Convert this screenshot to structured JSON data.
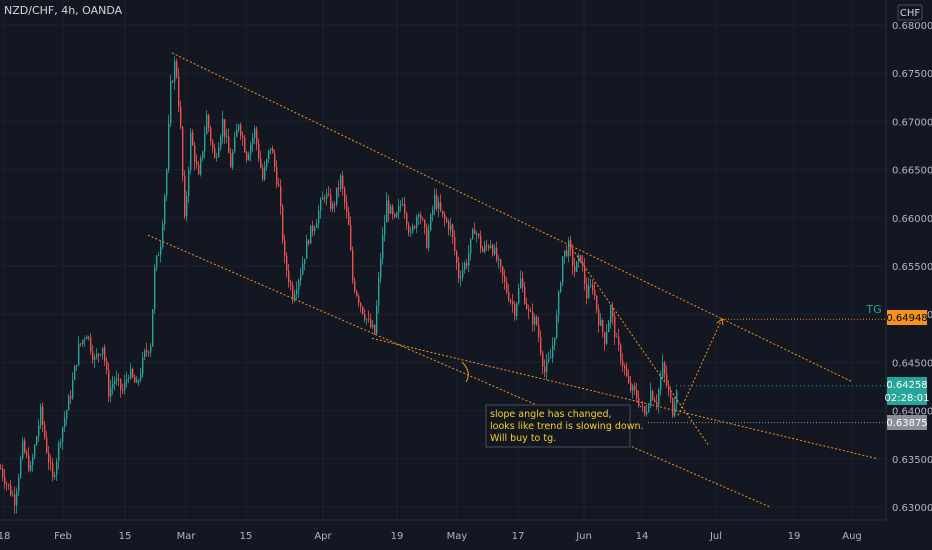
{
  "header": {
    "symbol_line": "NZD/CHF, 4h, OANDA"
  },
  "currency": "CHF",
  "markers": {
    "tg_text": "TG",
    "tg_price": "0.64948",
    "last_price": "0.64258",
    "countdown": "02:28:01",
    "level_price": "0.63875"
  },
  "annotation": [
    "slope angle has changed,",
    "looks like trend is slowing down.",
    "Will buy to tg."
  ],
  "chart_data": {
    "type": "candlestick",
    "title": "NZD/CHF, 4h, OANDA",
    "ylim": [
      0.6295,
      0.6805
    ],
    "y_ticks": [
      "0.68000",
      "0.67500",
      "0.67000",
      "0.66500",
      "0.66000",
      "0.65500",
      "0.65000",
      "0.64500",
      "0.64000",
      "0.63500",
      "0.63000"
    ],
    "x_ticks": [
      "18",
      "Feb",
      "15",
      "Mar",
      "15",
      "Apr",
      "19",
      "May",
      "17",
      "Jun",
      "14",
      "Jul",
      "19",
      "Aug"
    ],
    "colors": {
      "up": "#26a69a",
      "down": "#ef5350",
      "trendline": "#f7931a",
      "tg": "#f7931a",
      "last": "#26a69a",
      "level": "#8a8e99"
    },
    "price_path": [
      [
        0,
        0.634
      ],
      [
        8,
        0.632
      ],
      [
        14,
        0.6308
      ],
      [
        22,
        0.6362
      ],
      [
        30,
        0.6338
      ],
      [
        40,
        0.6398
      ],
      [
        46,
        0.636
      ],
      [
        52,
        0.6328
      ],
      [
        60,
        0.6375
      ],
      [
        70,
        0.6418
      ],
      [
        78,
        0.6465
      ],
      [
        86,
        0.6482
      ],
      [
        94,
        0.6452
      ],
      [
        102,
        0.6468
      ],
      [
        108,
        0.642
      ],
      [
        114,
        0.6432
      ],
      [
        122,
        0.642
      ],
      [
        128,
        0.644
      ],
      [
        136,
        0.6425
      ],
      [
        144,
        0.6458
      ],
      [
        150,
        0.647
      ],
      [
        154,
        0.6545
      ],
      [
        160,
        0.6575
      ],
      [
        166,
        0.665
      ],
      [
        170,
        0.6735
      ],
      [
        175,
        0.6765
      ],
      [
        180,
        0.669
      ],
      [
        184,
        0.6595
      ],
      [
        190,
        0.6685
      ],
      [
        198,
        0.664
      ],
      [
        206,
        0.6705
      ],
      [
        214,
        0.666
      ],
      [
        222,
        0.67
      ],
      [
        230,
        0.6655
      ],
      [
        238,
        0.67
      ],
      [
        246,
        0.6665
      ],
      [
        254,
        0.669
      ],
      [
        262,
        0.664
      ],
      [
        270,
        0.6675
      ],
      [
        278,
        0.663
      ],
      [
        284,
        0.6555
      ],
      [
        292,
        0.652
      ],
      [
        300,
        0.6545
      ],
      [
        308,
        0.658
      ],
      [
        316,
        0.66
      ],
      [
        324,
        0.6625
      ],
      [
        332,
        0.661
      ],
      [
        340,
        0.664
      ],
      [
        348,
        0.659
      ],
      [
        352,
        0.6535
      ],
      [
        360,
        0.651
      ],
      [
        368,
        0.649
      ],
      [
        374,
        0.648
      ],
      [
        380,
        0.656
      ],
      [
        386,
        0.6615
      ],
      [
        394,
        0.6595
      ],
      [
        402,
        0.662
      ],
      [
        410,
        0.658
      ],
      [
        418,
        0.661
      ],
      [
        426,
        0.6575
      ],
      [
        434,
        0.662
      ],
      [
        442,
        0.66
      ],
      [
        450,
        0.659
      ],
      [
        458,
        0.654
      ],
      [
        466,
        0.6555
      ],
      [
        474,
        0.659
      ],
      [
        482,
        0.6565
      ],
      [
        490,
        0.6575
      ],
      [
        498,
        0.655
      ],
      [
        506,
        0.6525
      ],
      [
        514,
        0.6505
      ],
      [
        520,
        0.6535
      ],
      [
        528,
        0.65
      ],
      [
        536,
        0.649
      ],
      [
        544,
        0.644
      ],
      [
        550,
        0.6455
      ],
      [
        556,
        0.6495
      ],
      [
        562,
        0.656
      ],
      [
        568,
        0.657
      ],
      [
        574,
        0.6545
      ],
      [
        580,
        0.656
      ],
      [
        586,
        0.652
      ],
      [
        592,
        0.653
      ],
      [
        598,
        0.6495
      ],
      [
        604,
        0.6475
      ],
      [
        610,
        0.6505
      ],
      [
        616,
        0.647
      ],
      [
        622,
        0.645
      ],
      [
        628,
        0.6425
      ],
      [
        636,
        0.6415
      ],
      [
        644,
        0.6395
      ],
      [
        650,
        0.642
      ],
      [
        656,
        0.641
      ],
      [
        662,
        0.6445
      ],
      [
        668,
        0.6418
      ],
      [
        672,
        0.64
      ],
      [
        676,
        0.6426
      ]
    ],
    "trendlines": [
      {
        "from": [
          172,
          0.6771
        ],
        "to": [
          852,
          0.643
        ]
      },
      {
        "from": [
          148,
          0.6582
        ],
        "to": [
          770,
          0.63
        ]
      },
      {
        "from": [
          372,
          0.6475
        ],
        "to": [
          878,
          0.635
        ]
      },
      {
        "from": [
          570,
          0.6571
        ],
        "to": [
          708,
          0.6365
        ]
      }
    ],
    "projection": [
      [
        678,
        0.6395
      ],
      [
        722,
        0.6495
      ]
    ],
    "tg_level": 0.64948,
    "last_level": 0.64258,
    "level_line": 0.63875
  }
}
